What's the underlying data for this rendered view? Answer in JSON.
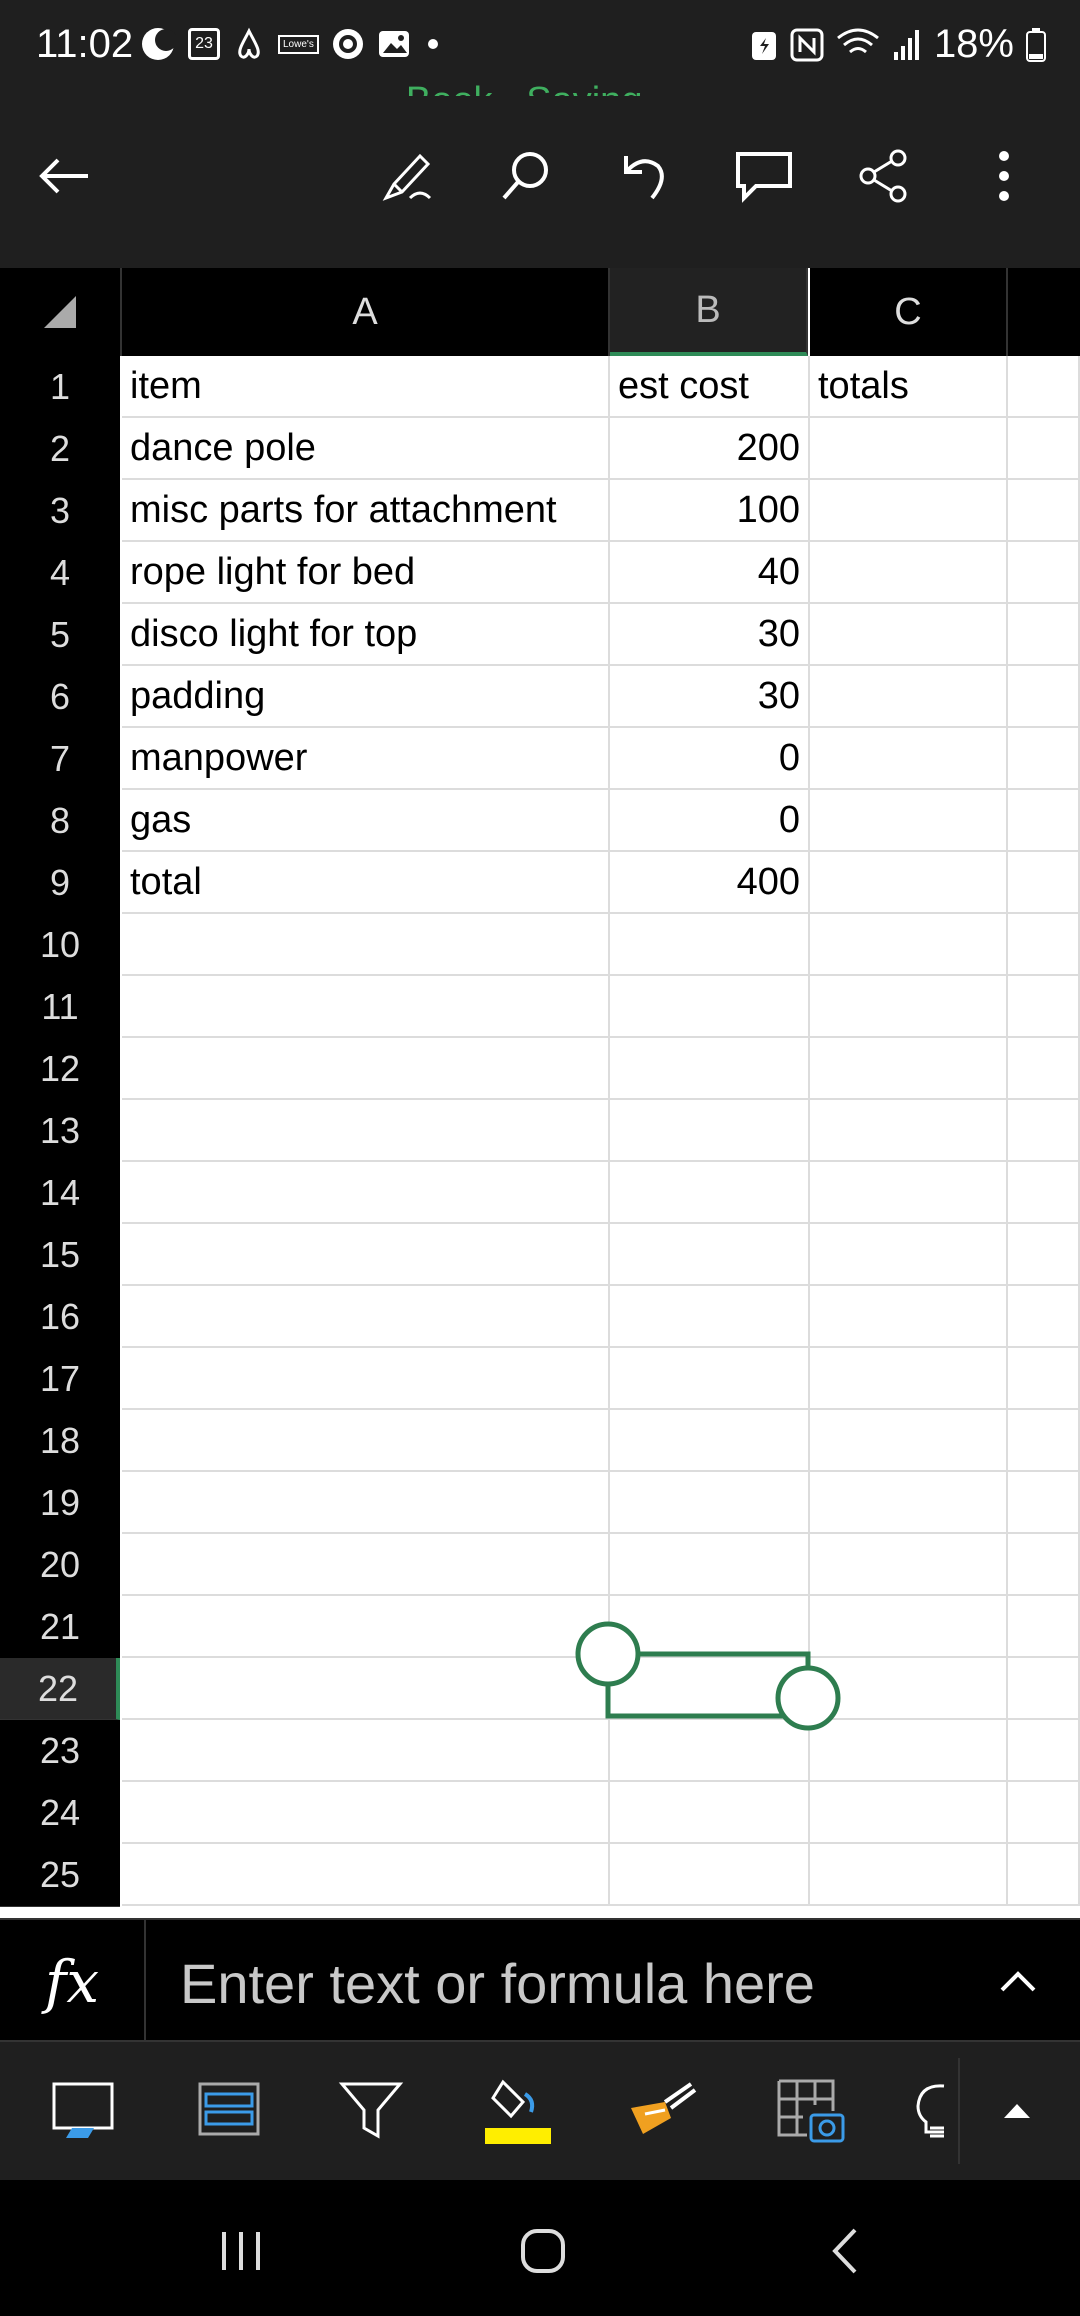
{
  "status": {
    "time": "11:02",
    "calendar_day": "23",
    "store_badge": "Lowe's",
    "battery": "18%"
  },
  "title": "Book - Saving...",
  "toolbar": {
    "icons": [
      "back-arrow-icon",
      "draw-pen-icon",
      "search-icon",
      "undo-icon",
      "comment-icon",
      "share-icon",
      "more-vertical-icon"
    ]
  },
  "sheet": {
    "columns": [
      "A",
      "B",
      "C"
    ],
    "selected_column": "B",
    "selected_row": 22,
    "rows": [
      {
        "n": "1",
        "a": "item",
        "b": "est cost",
        "c": "totals"
      },
      {
        "n": "2",
        "a": "dance pole",
        "b": "200",
        "c": ""
      },
      {
        "n": "3",
        "a": "misc parts for attachment",
        "b": "100",
        "c": ""
      },
      {
        "n": "4",
        "a": "rope light for bed",
        "b": "40",
        "c": ""
      },
      {
        "n": "5",
        "a": "disco light for top",
        "b": "30",
        "c": ""
      },
      {
        "n": "6",
        "a": "padding",
        "b": "30",
        "c": ""
      },
      {
        "n": "7",
        "a": "manpower",
        "b": "0",
        "c": ""
      },
      {
        "n": "8",
        "a": "gas",
        "b": "0",
        "c": ""
      },
      {
        "n": "9",
        "a": "total",
        "b": "400",
        "c": ""
      },
      {
        "n": "10",
        "a": "",
        "b": "",
        "c": ""
      },
      {
        "n": "11",
        "a": "",
        "b": "",
        "c": ""
      },
      {
        "n": "12",
        "a": "",
        "b": "",
        "c": ""
      },
      {
        "n": "13",
        "a": "",
        "b": "",
        "c": ""
      },
      {
        "n": "14",
        "a": "",
        "b": "",
        "c": ""
      },
      {
        "n": "15",
        "a": "",
        "b": "",
        "c": ""
      },
      {
        "n": "16",
        "a": "",
        "b": "",
        "c": ""
      },
      {
        "n": "17",
        "a": "",
        "b": "",
        "c": ""
      },
      {
        "n": "18",
        "a": "",
        "b": "",
        "c": ""
      },
      {
        "n": "19",
        "a": "",
        "b": "",
        "c": ""
      },
      {
        "n": "20",
        "a": "",
        "b": "",
        "c": ""
      },
      {
        "n": "21",
        "a": "",
        "b": "",
        "c": ""
      },
      {
        "n": "22",
        "a": "",
        "b": "",
        "c": ""
      },
      {
        "n": "23",
        "a": "",
        "b": "",
        "c": ""
      },
      {
        "n": "24",
        "a": "",
        "b": "",
        "c": ""
      },
      {
        "n": "25",
        "a": "",
        "b": "",
        "c": ""
      }
    ]
  },
  "formula_bar": {
    "fx_label": "fx",
    "placeholder": "Enter text or formula here"
  },
  "colors": {
    "accent": "#2e7d4f",
    "title_green": "#3faf5f",
    "highlight_yellow": "#ffee00"
  }
}
